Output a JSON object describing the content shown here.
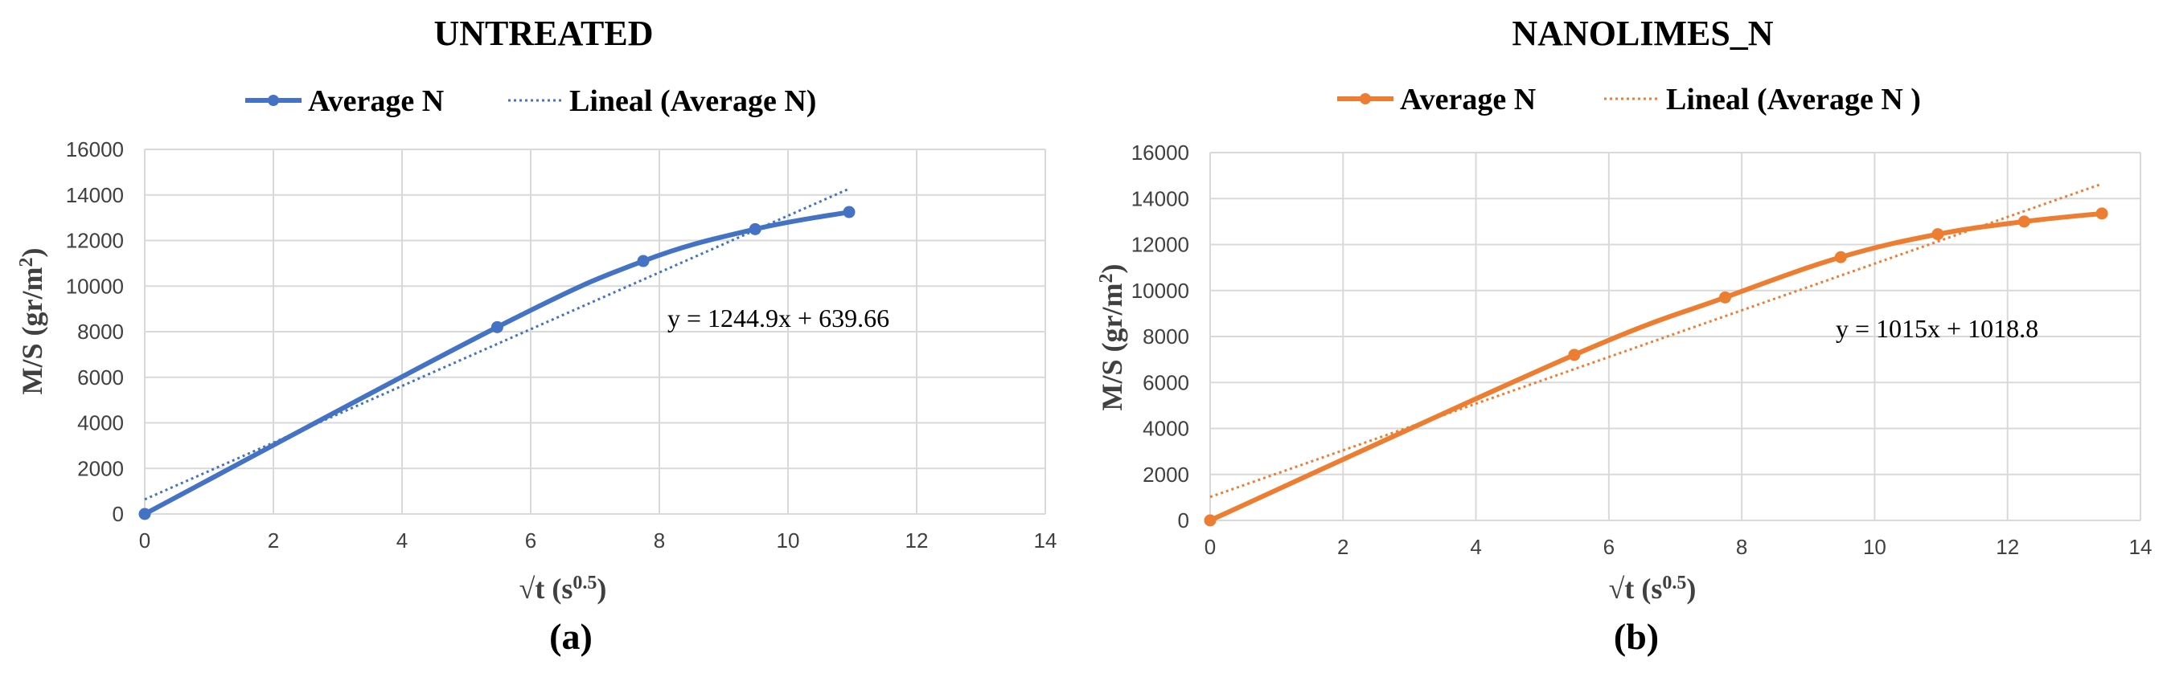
{
  "chart_data": [
    {
      "type": "line",
      "title": "UNTREATED",
      "xlabel_base": "√t (s",
      "xlabel_sup": "0.5",
      "xlabel_end": ")",
      "ylabel_base": "M/S (gr/m",
      "ylabel_sup": "2",
      "ylabel_end": ")",
      "xlim": [
        0,
        14
      ],
      "ylim": [
        0,
        16000
      ],
      "xticks": [
        0,
        2,
        4,
        6,
        8,
        10,
        12,
        14
      ],
      "yticks": [
        0,
        2000,
        4000,
        6000,
        8000,
        10000,
        12000,
        14000,
        16000
      ],
      "color": "#4472c4",
      "series": [
        {
          "name": "Average N",
          "x": [
            0,
            5.48,
            7.75,
            9.49,
            10.95
          ],
          "y": [
            0,
            8200,
            11100,
            12500,
            13250
          ]
        }
      ],
      "trendline": {
        "name": "Lineal (Average N)",
        "slope": 1244.9,
        "intercept": 639.66,
        "x_range": [
          0,
          10.95
        ],
        "equation": "y = 1244.9x + 639.66"
      },
      "panel_label": "(a)"
    },
    {
      "type": "line",
      "title": "NANOLIMES_N",
      "xlabel_base": "√t (s",
      "xlabel_sup": "0.5",
      "xlabel_end": ")",
      "ylabel_base": "M/S (gr/m",
      "ylabel_sup": "2",
      "ylabel_end": ")",
      "xlim": [
        0,
        14
      ],
      "ylim": [
        0,
        16000
      ],
      "xticks": [
        0,
        2,
        4,
        6,
        8,
        10,
        12,
        14
      ],
      "yticks": [
        0,
        2000,
        4000,
        6000,
        8000,
        10000,
        12000,
        14000,
        16000
      ],
      "color": "#ed7d31",
      "series": [
        {
          "name": "Average N",
          "x": [
            0,
            5.48,
            7.75,
            9.49,
            10.95,
            12.25,
            13.42
          ],
          "y": [
            0,
            7200,
            9700,
            11450,
            12450,
            13000,
            13350
          ]
        }
      ],
      "trendline": {
        "name": "Lineal (Average N )",
        "slope": 1015,
        "intercept": 1018.8,
        "x_range": [
          0,
          13.42
        ],
        "equation": "y = 1015x + 1018.8"
      },
      "panel_label": "(b)"
    }
  ]
}
